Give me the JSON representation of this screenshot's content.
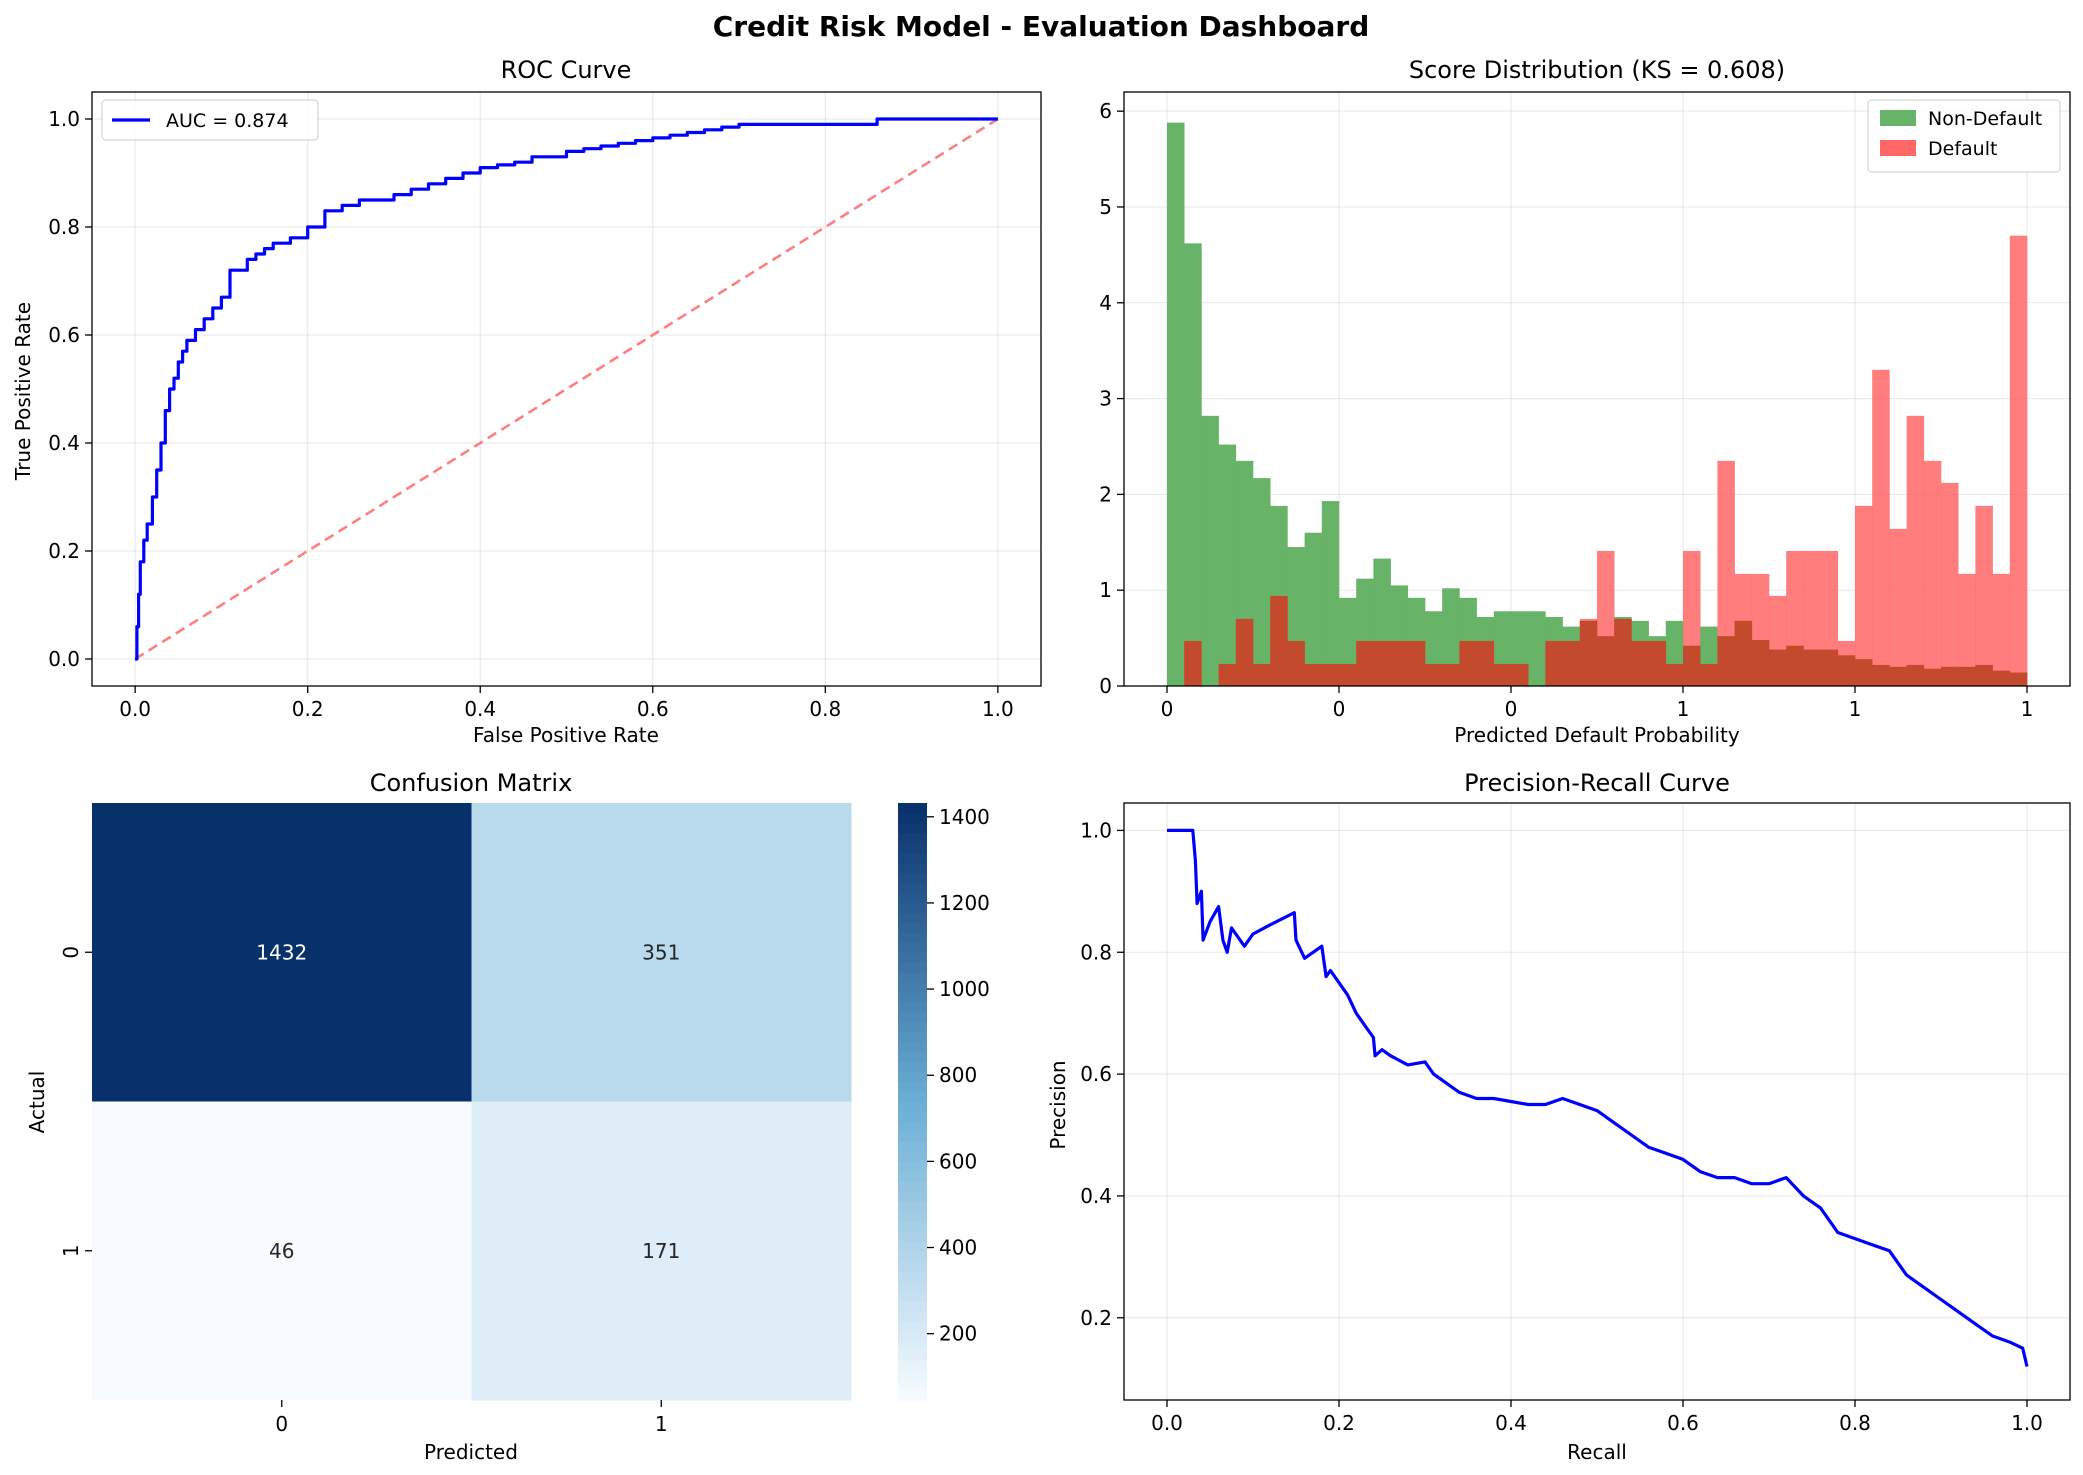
{
  "suptitle": "Credit Risk Model - Evaluation Dashboard",
  "colors": {
    "roc_line": "#0000ff",
    "diagonal": "#ff7f7f",
    "non_default": "#67b367",
    "default": "#ff6666",
    "pr_line": "#0000ff"
  },
  "chart_data": [
    {
      "id": "roc",
      "type": "line",
      "title": "ROC Curve",
      "xlabel": "False Positive Rate",
      "ylabel": "True Positive Rate",
      "xlim": [
        -0.05,
        1.05
      ],
      "ylim": [
        -0.05,
        1.05
      ],
      "xticks": [
        0.0,
        0.2,
        0.4,
        0.6,
        0.8,
        1.0
      ],
      "yticks": [
        0.0,
        0.2,
        0.4,
        0.6,
        0.8,
        1.0
      ],
      "tick_format": 1,
      "grid": true,
      "legend_position": "upper-left",
      "legend": [
        "AUC = 0.874"
      ],
      "series": [
        {
          "name": "AUC = 0.874",
          "style": "solid",
          "x": [
            0,
            0.002,
            0.004,
            0.006,
            0.01,
            0.014,
            0.02,
            0.025,
            0.03,
            0.035,
            0.04,
            0.045,
            0.05,
            0.055,
            0.06,
            0.07,
            0.08,
            0.09,
            0.1,
            0.11,
            0.12,
            0.13,
            0.14,
            0.15,
            0.16,
            0.18,
            0.2,
            0.22,
            0.24,
            0.26,
            0.28,
            0.3,
            0.32,
            0.34,
            0.36,
            0.38,
            0.4,
            0.42,
            0.44,
            0.46,
            0.48,
            0.5,
            0.52,
            0.54,
            0.56,
            0.58,
            0.6,
            0.62,
            0.64,
            0.66,
            0.68,
            0.7,
            0.72,
            0.75,
            0.8,
            0.85,
            0.86,
            0.9,
            0.95,
            1.0
          ],
          "y": [
            0,
            0.06,
            0.12,
            0.18,
            0.22,
            0.25,
            0.3,
            0.35,
            0.4,
            0.46,
            0.5,
            0.52,
            0.55,
            0.57,
            0.59,
            0.61,
            0.63,
            0.65,
            0.67,
            0.72,
            0.72,
            0.74,
            0.75,
            0.76,
            0.77,
            0.78,
            0.8,
            0.83,
            0.84,
            0.85,
            0.85,
            0.86,
            0.87,
            0.88,
            0.89,
            0.9,
            0.91,
            0.915,
            0.92,
            0.93,
            0.93,
            0.94,
            0.945,
            0.95,
            0.955,
            0.96,
            0.965,
            0.97,
            0.975,
            0.98,
            0.985,
            0.99,
            0.99,
            0.99,
            0.99,
            0.99,
            1.0,
            1.0,
            1.0,
            1.0
          ]
        },
        {
          "name": "",
          "style": "dashed",
          "x": [
            0,
            1
          ],
          "y": [
            0,
            1
          ]
        }
      ]
    },
    {
      "id": "hist",
      "type": "bar",
      "title": "Score Distribution (KS = 0.608)",
      "xlabel": "Predicted Default Probability",
      "ylabel": "",
      "xlim": [
        -0.05,
        1.05
      ],
      "ylim": [
        0,
        6.2
      ],
      "xticks": [
        0.0,
        0.2,
        0.4,
        0.6,
        0.8,
        1.0
      ],
      "yticks": [
        0,
        1,
        2,
        3,
        4,
        5,
        6
      ],
      "tick_format": 0,
      "grid": true,
      "legend_position": "upper-right",
      "legend": [
        "Non-Default",
        "Default"
      ],
      "bin_start": 0.0,
      "bin_width": 0.02,
      "series": [
        {
          "name": "Non-Default",
          "values": [
            5.88,
            4.62,
            2.82,
            2.52,
            2.35,
            2.17,
            1.88,
            1.45,
            1.6,
            1.93,
            0.92,
            1.12,
            1.33,
            1.05,
            0.92,
            0.78,
            1.02,
            0.92,
            0.72,
            0.78,
            0.78,
            0.78,
            0.72,
            0.62,
            0.68,
            0.52,
            0.72,
            0.68,
            0.52,
            0.68,
            0.42,
            0.62,
            0.52,
            0.68,
            0.48,
            0.38,
            0.42,
            0.38,
            0.38,
            0.32,
            0.28,
            0.22,
            0.2,
            0.22,
            0.18,
            0.2,
            0.2,
            0.22,
            0.16,
            0.14
          ]
        },
        {
          "name": "Default",
          "values": [
            0.0,
            0.47,
            0.0,
            0.23,
            0.7,
            0.23,
            0.94,
            0.47,
            0.23,
            0.23,
            0.23,
            0.47,
            0.47,
            0.47,
            0.47,
            0.23,
            0.23,
            0.47,
            0.47,
            0.23,
            0.23,
            0.0,
            0.47,
            0.47,
            0.7,
            1.41,
            0.7,
            0.47,
            0.47,
            0.23,
            1.41,
            0.23,
            2.35,
            1.17,
            1.17,
            0.94,
            1.41,
            1.41,
            1.41,
            0.47,
            1.88,
            3.3,
            1.64,
            2.82,
            2.35,
            2.12,
            1.17,
            1.88,
            1.17,
            4.7
          ]
        }
      ]
    },
    {
      "id": "cm",
      "type": "heatmap",
      "title": "Confusion Matrix",
      "xlabel": "Predicted",
      "ylabel": "Actual",
      "x_categories": [
        "0",
        "1"
      ],
      "y_categories": [
        "0",
        "1"
      ],
      "values": [
        [
          1432,
          351
        ],
        [
          46,
          171
        ]
      ],
      "colorbar_ticks": [
        200,
        400,
        600,
        800,
        1000,
        1200,
        1400
      ],
      "vmin": 46,
      "vmax": 1432,
      "colormap": "Blues"
    },
    {
      "id": "pr",
      "type": "line",
      "title": "Precision-Recall Curve",
      "xlabel": "Recall",
      "ylabel": "Precision",
      "xlim": [
        -0.05,
        1.05
      ],
      "ylim": [
        0.065,
        1.045
      ],
      "xticks": [
        0.0,
        0.2,
        0.4,
        0.6,
        0.8,
        1.0
      ],
      "yticks": [
        0.2,
        0.4,
        0.6,
        0.8,
        1.0
      ],
      "tick_format": 1,
      "grid": true,
      "series": [
        {
          "name": "",
          "style": "solid",
          "x": [
            0,
            0.03,
            0.033,
            0.035,
            0.04,
            0.042,
            0.05,
            0.06,
            0.065,
            0.07,
            0.075,
            0.09,
            0.1,
            0.12,
            0.148,
            0.15,
            0.16,
            0.18,
            0.185,
            0.19,
            0.2,
            0.21,
            0.22,
            0.23,
            0.24,
            0.242,
            0.25,
            0.26,
            0.28,
            0.3,
            0.31,
            0.32,
            0.34,
            0.36,
            0.38,
            0.4,
            0.42,
            0.44,
            0.46,
            0.48,
            0.5,
            0.52,
            0.54,
            0.56,
            0.58,
            0.6,
            0.62,
            0.64,
            0.66,
            0.68,
            0.7,
            0.72,
            0.74,
            0.76,
            0.78,
            0.8,
            0.82,
            0.84,
            0.86,
            0.88,
            0.9,
            0.92,
            0.94,
            0.96,
            0.98,
            0.995,
            1.0
          ],
          "y": [
            1.0,
            1.0,
            0.95,
            0.88,
            0.9,
            0.82,
            0.85,
            0.875,
            0.82,
            0.8,
            0.84,
            0.81,
            0.83,
            0.845,
            0.865,
            0.82,
            0.79,
            0.81,
            0.76,
            0.77,
            0.75,
            0.73,
            0.7,
            0.68,
            0.66,
            0.63,
            0.64,
            0.63,
            0.615,
            0.62,
            0.6,
            0.59,
            0.57,
            0.56,
            0.56,
            0.555,
            0.55,
            0.55,
            0.56,
            0.55,
            0.54,
            0.52,
            0.5,
            0.48,
            0.47,
            0.46,
            0.44,
            0.43,
            0.43,
            0.42,
            0.42,
            0.43,
            0.4,
            0.38,
            0.34,
            0.33,
            0.32,
            0.31,
            0.27,
            0.25,
            0.23,
            0.21,
            0.19,
            0.17,
            0.16,
            0.15,
            0.12
          ]
        }
      ]
    }
  ]
}
